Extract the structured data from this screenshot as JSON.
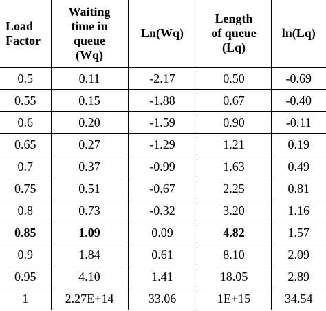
{
  "table": {
    "headers": [
      [
        "Load",
        "Factor"
      ],
      [
        "Waiting",
        "time in",
        "queue",
        "(Wq)"
      ],
      [
        "Ln(Wq)"
      ],
      [
        "Length",
        "of queue",
        "(Lq)"
      ],
      [
        "ln(Lq)"
      ]
    ],
    "rows": [
      [
        "0.5",
        "0.11",
        "-2.17",
        "0.50",
        "-0.69"
      ],
      [
        "0.55",
        "0.15",
        "-1.88",
        "0.67",
        "-0.40"
      ],
      [
        "0.6",
        "0.20",
        "-1.59",
        "0.90",
        "-0.11"
      ],
      [
        "0.65",
        "0.27",
        "-1.29",
        "1.21",
        "0.19"
      ],
      [
        "0.7",
        "0.37",
        "-0.99",
        "1.63",
        "0.49"
      ],
      [
        "0.75",
        "0.51",
        "-0.67",
        "2.25",
        "0.81"
      ],
      [
        "0.8",
        "0.73",
        "-0.32",
        "3.20",
        "1.16"
      ],
      [
        "0.85",
        "1.09",
        "0.09",
        "4.82",
        "1.57"
      ],
      [
        "0.9",
        "1.84",
        "0.61",
        "8.10",
        "2.09"
      ],
      [
        "0.95",
        "4.10",
        "1.41",
        "18.05",
        "2.89"
      ],
      [
        "1",
        "2.27E+14",
        "33.06",
        "1E+15",
        "34.54"
      ]
    ]
  }
}
